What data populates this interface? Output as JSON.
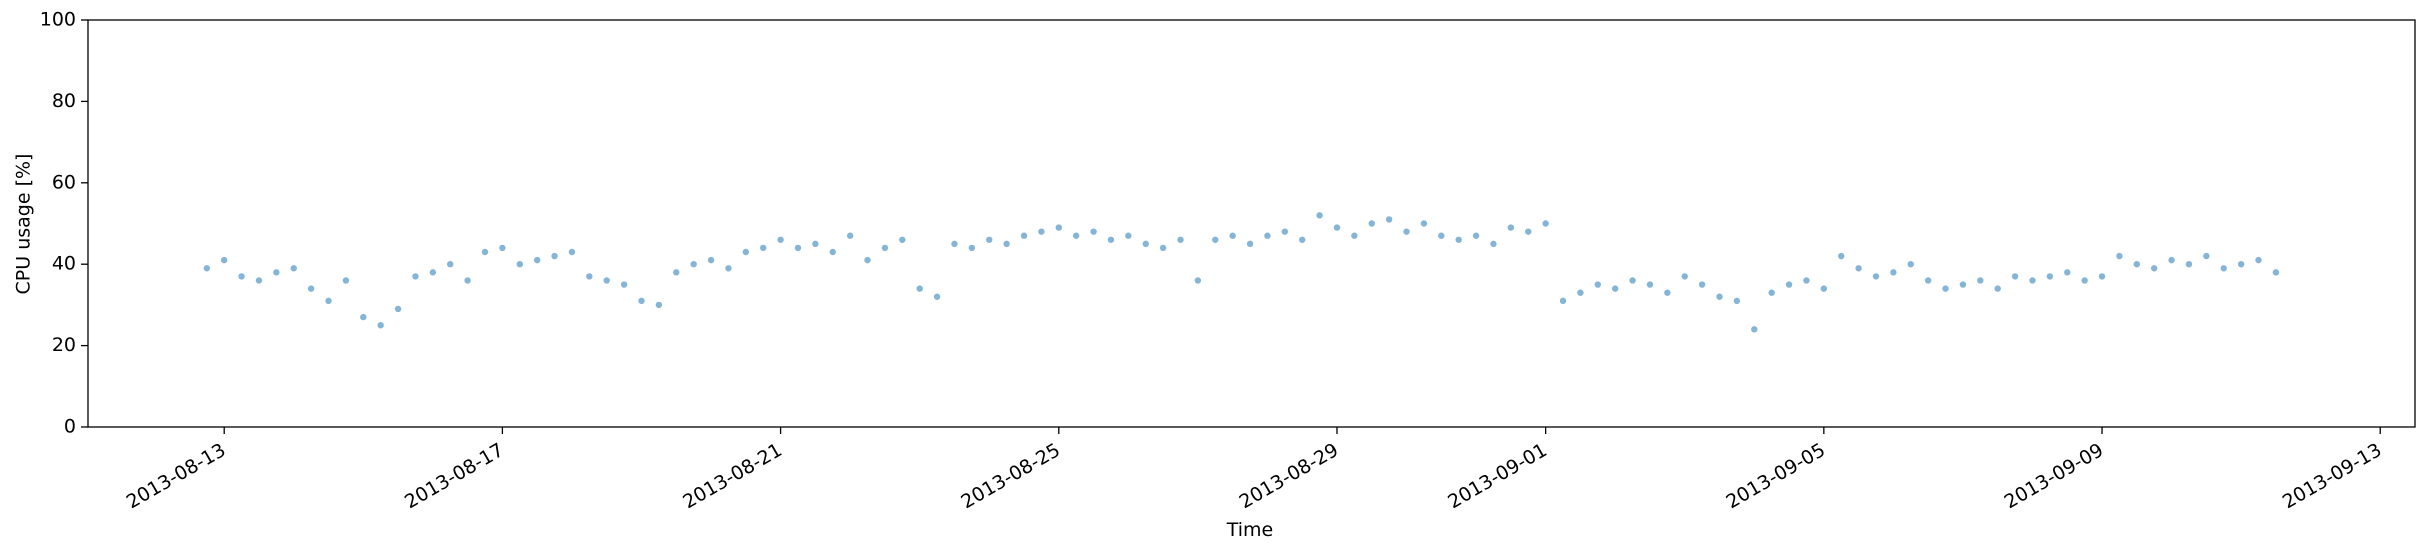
{
  "chart_data": {
    "type": "scatter",
    "xlabel": "Time",
    "ylabel": "CPU usage [%]",
    "xlim": [
      "2013-08-11T01:00",
      "2013-09-13T12:00"
    ],
    "xticks": [
      "2013-08-13",
      "2013-08-17",
      "2013-08-21",
      "2013-08-25",
      "2013-08-29",
      "2013-09-01",
      "2013-09-05",
      "2013-09-09",
      "2013-09-13"
    ],
    "ylim": [
      0,
      100
    ],
    "yticks": [
      0,
      20,
      40,
      60,
      80,
      100
    ],
    "series": [
      {
        "color": "#1f77b4",
        "x": [
          "2013-08-12T18:00",
          "2013-08-13T00:00",
          "2013-08-13T06:00",
          "2013-08-13T12:00",
          "2013-08-13T18:00",
          "2013-08-14T00:00",
          "2013-08-14T06:00",
          "2013-08-14T12:00",
          "2013-08-14T18:00",
          "2013-08-15T00:00",
          "2013-08-15T06:00",
          "2013-08-15T12:00",
          "2013-08-15T18:00",
          "2013-08-16T00:00",
          "2013-08-16T06:00",
          "2013-08-16T12:00",
          "2013-08-16T18:00",
          "2013-08-17T00:00",
          "2013-08-17T06:00",
          "2013-08-17T12:00",
          "2013-08-17T18:00",
          "2013-08-18T00:00",
          "2013-08-18T06:00",
          "2013-08-18T12:00",
          "2013-08-18T18:00",
          "2013-08-19T00:00",
          "2013-08-19T06:00",
          "2013-08-19T12:00",
          "2013-08-19T18:00",
          "2013-08-20T00:00",
          "2013-08-20T06:00",
          "2013-08-20T12:00",
          "2013-08-20T18:00",
          "2013-08-21T00:00",
          "2013-08-21T06:00",
          "2013-08-21T12:00",
          "2013-08-21T18:00",
          "2013-08-22T00:00",
          "2013-08-22T06:00",
          "2013-08-22T12:00",
          "2013-08-22T18:00",
          "2013-08-23T00:00",
          "2013-08-23T06:00",
          "2013-08-23T12:00",
          "2013-08-23T18:00",
          "2013-08-24T00:00",
          "2013-08-24T06:00",
          "2013-08-24T12:00",
          "2013-08-24T18:00",
          "2013-08-25T00:00",
          "2013-08-25T06:00",
          "2013-08-25T12:00",
          "2013-08-25T18:00",
          "2013-08-26T00:00",
          "2013-08-26T06:00",
          "2013-08-26T12:00",
          "2013-08-26T18:00",
          "2013-08-27T00:00",
          "2013-08-27T06:00",
          "2013-08-27T12:00",
          "2013-08-27T18:00",
          "2013-08-28T00:00",
          "2013-08-28T06:00",
          "2013-08-28T12:00",
          "2013-08-28T18:00",
          "2013-08-29T00:00",
          "2013-08-29T06:00",
          "2013-08-29T12:00",
          "2013-08-29T18:00",
          "2013-08-30T00:00",
          "2013-08-30T06:00",
          "2013-08-30T12:00",
          "2013-08-30T18:00",
          "2013-08-31T00:00",
          "2013-08-31T06:00",
          "2013-08-31T12:00",
          "2013-08-31T18:00",
          "2013-09-01T00:00",
          "2013-09-01T06:00",
          "2013-09-01T12:00",
          "2013-09-01T18:00",
          "2013-09-02T00:00",
          "2013-09-02T06:00",
          "2013-09-02T12:00",
          "2013-09-02T18:00",
          "2013-09-03T00:00",
          "2013-09-03T06:00",
          "2013-09-03T12:00",
          "2013-09-03T18:00",
          "2013-09-04T00:00",
          "2013-09-04T06:00",
          "2013-09-04T12:00",
          "2013-09-04T18:00",
          "2013-09-05T00:00",
          "2013-09-05T06:00",
          "2013-09-05T12:00",
          "2013-09-05T18:00",
          "2013-09-06T00:00",
          "2013-09-06T06:00",
          "2013-09-06T12:00",
          "2013-09-06T18:00",
          "2013-09-07T00:00",
          "2013-09-07T06:00",
          "2013-09-07T12:00",
          "2013-09-07T18:00",
          "2013-09-08T00:00",
          "2013-09-08T06:00",
          "2013-09-08T12:00",
          "2013-09-08T18:00",
          "2013-09-09T00:00",
          "2013-09-09T06:00",
          "2013-09-09T12:00",
          "2013-09-09T18:00",
          "2013-09-10T00:00",
          "2013-09-10T06:00",
          "2013-09-10T12:00",
          "2013-09-10T18:00",
          "2013-09-11T00:00",
          "2013-09-11T06:00",
          "2013-09-11T12:00"
        ],
        "values": [
          39,
          41,
          37,
          36,
          38,
          39,
          34,
          31,
          36,
          27,
          25,
          29,
          37,
          38,
          40,
          36,
          43,
          44,
          40,
          41,
          42,
          43,
          37,
          36,
          35,
          31,
          30,
          38,
          40,
          41,
          39,
          43,
          44,
          46,
          44,
          45,
          43,
          47,
          41,
          44,
          46,
          34,
          32,
          45,
          44,
          46,
          45,
          47,
          48,
          49,
          47,
          48,
          46,
          47,
          45,
          44,
          46,
          36,
          46,
          47,
          45,
          47,
          48,
          46,
          52,
          49,
          47,
          50,
          51,
          48,
          50,
          47,
          46,
          47,
          45,
          49,
          48,
          50,
          31,
          33,
          35,
          34,
          36,
          35,
          33,
          37,
          35,
          32,
          31,
          24,
          33,
          35,
          36,
          34,
          42,
          39,
          37,
          38,
          40,
          36,
          34,
          35,
          36,
          34,
          37,
          36,
          37,
          38,
          36,
          37,
          42,
          40,
          39,
          41,
          40,
          42,
          39,
          40,
          41,
          38
        ]
      }
    ]
  }
}
